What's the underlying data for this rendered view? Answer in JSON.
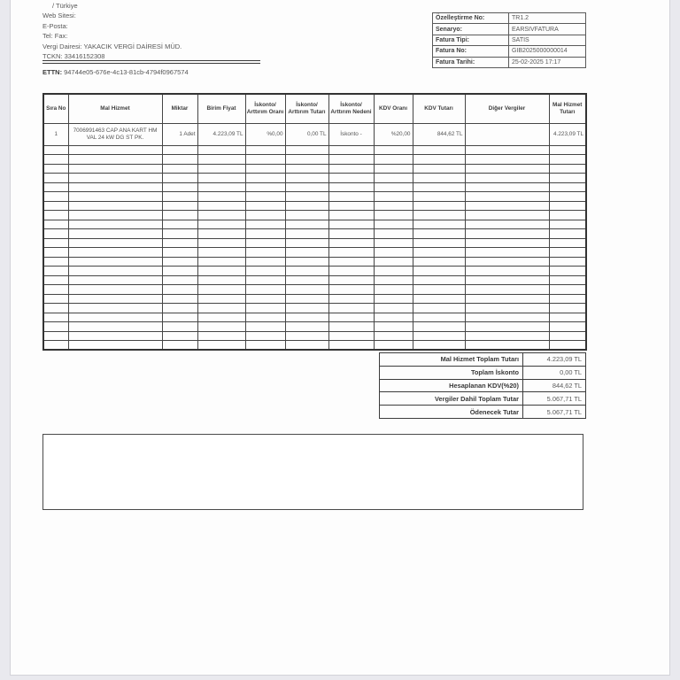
{
  "seller": {
    "lines": [
      "/ Türkiye",
      "Web Sitesi:",
      "E-Posta:",
      "Tel: Fax:",
      "Vergi Dairesi: YAKACIK VERGİ DAİRESİ MÜD.",
      "TCKN: 33416152308"
    ]
  },
  "ettn": {
    "label": "ETTN:",
    "value": "94744e05-676e-4c13-81cb-4794f0967574"
  },
  "invoice_info": {
    "rows": [
      {
        "label": "Özelleştirme No:",
        "value": "TR1.2"
      },
      {
        "label": "Senaryo:",
        "value": "EARSIVFATURA"
      },
      {
        "label": "Fatura Tipi:",
        "value": "SATIS"
      },
      {
        "label": "Fatura No:",
        "value": "GIB2025000000014"
      },
      {
        "label": "Fatura Tarihi:",
        "value": "25-02-2025 17:17"
      }
    ]
  },
  "items_table": {
    "headers": [
      "Sıra No",
      "Mal Hizmet",
      "Miktar",
      "Birim Fiyat",
      "İskonto/ Arttırım Oranı",
      "İskonto/ Arttırım Tutarı",
      "İskonto/ Arttırım Nedeni",
      "KDV Oranı",
      "KDV Tutarı",
      "Diğer Vergiler",
      "Mal Hizmet Tutarı"
    ],
    "rows": [
      [
        "1",
        "7006991463 CAP ANA KART HM VAL 24 kW DG ST PK.",
        "1 Adet",
        "4.223,09 TL",
        "%0,00",
        "0,00 TL",
        "İskonto -",
        "%20,00",
        "844,62 TL",
        "",
        "4.223,09 TL"
      ]
    ],
    "empty_row_count": 22
  },
  "totals": {
    "rows": [
      {
        "label": "Mal Hizmet Toplam Tutarı",
        "value": "4.223,09 TL"
      },
      {
        "label": "Toplam İskonto",
        "value": "0,00 TL"
      },
      {
        "label": "Hesaplanan KDV(%20)",
        "value": "844,62 TL"
      },
      {
        "label": "Vergiler Dahil Toplam Tutar",
        "value": "5.067,71 TL"
      },
      {
        "label": "Ödenecek Tutar",
        "value": "5.067,71 TL"
      }
    ]
  },
  "colors": {
    "page_background": "#fdfdfd",
    "surround_background": "#e9e9ee",
    "border": "#333333",
    "text": "#4a4a4a"
  }
}
